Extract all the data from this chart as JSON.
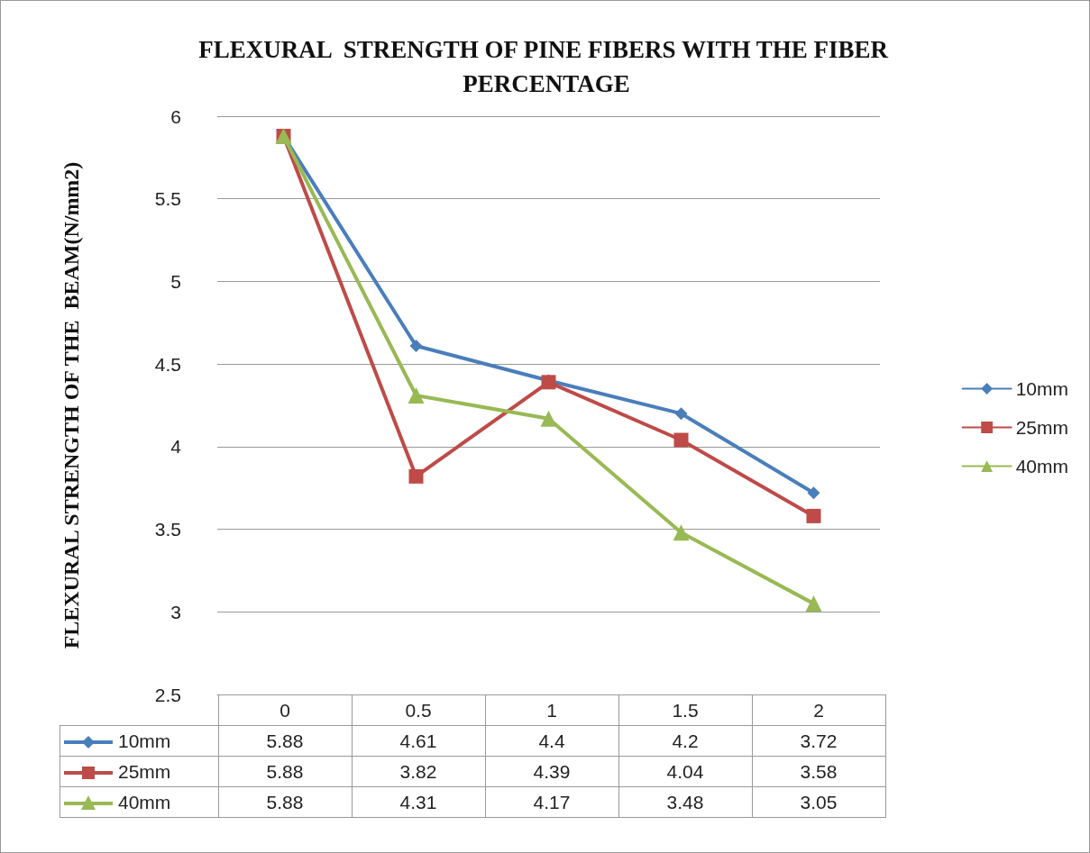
{
  "chart_data": {
    "type": "line",
    "title": "FLEXURAL  STRENGTH OF PINE FIBERS WITH THE FIBER PERCENTAGE",
    "ylabel": "FLEXURAL STRENGTH OF THE  BEAM(N/mm2)",
    "categories": [
      "0",
      "0.5",
      "1",
      "1.5",
      "2"
    ],
    "series": [
      {
        "name": "10mm",
        "color": "#4a7ebb",
        "marker": "diamond",
        "values": [
          5.88,
          4.61,
          4.4,
          4.2,
          3.72
        ]
      },
      {
        "name": "25mm",
        "color": "#be4b48",
        "marker": "square",
        "values": [
          5.88,
          3.82,
          4.39,
          4.04,
          3.58
        ]
      },
      {
        "name": "40mm",
        "color": "#98b954",
        "marker": "triangle",
        "values": [
          5.88,
          4.31,
          4.17,
          3.48,
          3.05
        ]
      }
    ],
    "ylim": [
      2.5,
      6
    ],
    "yticks": [
      2.5,
      3,
      3.5,
      4,
      4.5,
      5,
      5.5,
      6
    ],
    "grid": "y",
    "legend": "right",
    "data_labels": true
  }
}
